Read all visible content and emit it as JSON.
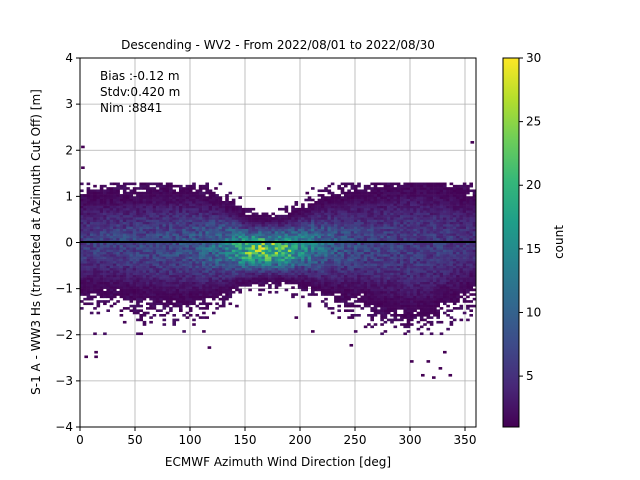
{
  "chart_data": {
    "type": "heatmap",
    "title": "Descending - WV2 - From 2022/08/01 to 2022/08/30",
    "xlabel": "ECMWF Azimuth Wind Direction [deg]",
    "ylabel": "S-1 A - WW3 Hs (truncated at Azimuth Cut Off) [m]",
    "xlim": [
      0,
      360
    ],
    "ylim": [
      -4,
      4
    ],
    "xticks": [
      "0",
      "50",
      "100",
      "150",
      "200",
      "250",
      "300",
      "350"
    ],
    "yticks": [
      "−4",
      "−3",
      "−2",
      "−1",
      "0",
      "1",
      "2",
      "3",
      "4"
    ],
    "grid": true,
    "annotations": [
      "Bias :-0.12 m",
      "Stdv:0.420 m",
      "Nim :8841"
    ],
    "reference_line_y": 0,
    "colorbar": {
      "label": "count",
      "range": [
        1,
        30
      ],
      "ticks": [
        "5",
        "10",
        "15",
        "20",
        "25",
        "30"
      ],
      "colormap": "viridis"
    },
    "bin_width_x": 3,
    "bin_height_y": 0.05,
    "density_profile": {
      "x": [
        0,
        30,
        60,
        100,
        130,
        150,
        170,
        185,
        200,
        230,
        260,
        300,
        330,
        360
      ],
      "peak_count": [
        6,
        7,
        7,
        8,
        12,
        20,
        23,
        22,
        15,
        9,
        7,
        6,
        6,
        5
      ],
      "center_y": [
        0.0,
        0.0,
        -0.05,
        -0.05,
        -0.1,
        -0.15,
        -0.15,
        -0.15,
        -0.1,
        -0.05,
        -0.05,
        -0.1,
        -0.05,
        0.0
      ],
      "spread_y": [
        0.55,
        0.55,
        0.6,
        0.6,
        0.45,
        0.3,
        0.28,
        0.28,
        0.35,
        0.5,
        0.6,
        0.8,
        0.7,
        0.55
      ]
    },
    "outliers": [
      [
        1,
        2.05
      ],
      [
        1,
        1.6
      ],
      [
        13,
        -2.4
      ],
      [
        13,
        -2.5
      ],
      [
        4,
        -2.5
      ],
      [
        116,
        -2.3
      ],
      [
        210,
        -1.95
      ],
      [
        245,
        -2.25
      ],
      [
        122,
        1.15
      ],
      [
        270,
        1.0
      ],
      [
        355,
        2.15
      ],
      [
        346,
        0.9
      ],
      [
        300,
        -2.6
      ],
      [
        310,
        -2.9
      ],
      [
        320,
        -2.95
      ],
      [
        335,
        -2.9
      ],
      [
        326,
        -2.75
      ],
      [
        315,
        -2.6
      ],
      [
        330,
        -2.4
      ],
      [
        170,
        1.15
      ],
      [
        205,
        1.05
      ],
      [
        195,
        -1.65
      ],
      [
        90,
        -1.5
      ],
      [
        45,
        -1.5
      ],
      [
        240,
        -1.5
      ]
    ]
  }
}
